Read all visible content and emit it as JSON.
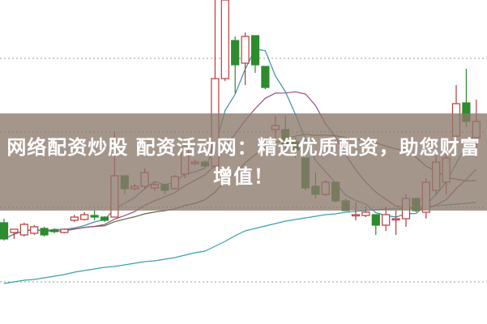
{
  "title": "网络配资炒股 配资活动网：精选优质配资，助您财富增值！",
  "chart_data": {
    "type": "candlestick",
    "grid": true,
    "colors": {
      "up": "#b83a3a",
      "down": "#2e8b2e",
      "ma5": "#3a8fa8",
      "ma10": "#9a4a8a",
      "ma20": "#5a6a3a",
      "ma_long": "#3aa0b0",
      "grid": "#999999"
    },
    "candles": [
      [
        12.5,
        10.5,
        13.0,
        10.3
      ],
      [
        11.3,
        11.7,
        11.7,
        10.5
      ],
      [
        11.0,
        12.3,
        12.5,
        10.8
      ],
      [
        11.2,
        12.0,
        12.2,
        11.0
      ],
      [
        11.8,
        11.0,
        12.0,
        10.8
      ],
      [
        11.6,
        11.4,
        11.8,
        11.2
      ],
      [
        11.3,
        11.7,
        11.8,
        11.2
      ],
      [
        12.8,
        13.2,
        13.5,
        12.6
      ],
      [
        12.9,
        13.5,
        13.8,
        12.8
      ],
      [
        13.4,
        13.2,
        14.0,
        12.8
      ],
      [
        13.2,
        12.8,
        13.3,
        12.6
      ],
      [
        13.2,
        18.3,
        23.7,
        13.2
      ],
      [
        18.3,
        16.7,
        18.3,
        16.0
      ],
      [
        16.7,
        17.0,
        17.3,
        16.5
      ],
      [
        17.0,
        18.7,
        19.2,
        16.6
      ],
      [
        16.8,
        17.2,
        17.6,
        16.4
      ],
      [
        17.2,
        16.5,
        17.2,
        16.0
      ],
      [
        16.7,
        18.2,
        18.4,
        16.6
      ],
      [
        18.5,
        22.0,
        22.0,
        18.0
      ],
      [
        19.8,
        20.0,
        20.3,
        19.6
      ],
      [
        20.0,
        19.5,
        20.2,
        19.3
      ],
      [
        19.5,
        30.3,
        40.0,
        19.3
      ],
      [
        30.3,
        40.0,
        40.0,
        30.0
      ],
      [
        35.0,
        32.0,
        35.5,
        28.5
      ],
      [
        32.2,
        35.5,
        36.0,
        29.5
      ],
      [
        35.6,
        32.0,
        35.6,
        31.0
      ],
      [
        31.8,
        29.2,
        31.8,
        29.0
      ],
      [
        24.0,
        24.5,
        25.7,
        22.5
      ],
      [
        24.0,
        22.2,
        25.7,
        21.0
      ],
      [
        22.5,
        21.5,
        23.0,
        20.5
      ],
      [
        20.5,
        16.8,
        20.5,
        16.5
      ],
      [
        17.0,
        16.0,
        18.7,
        15.5
      ],
      [
        16.0,
        17.5,
        17.8,
        15.8
      ],
      [
        17.5,
        15.2,
        17.5,
        15.0
      ],
      [
        15.2,
        14.0,
        15.5,
        14.0
      ],
      [
        13.5,
        13.5,
        15.0,
        12.8
      ],
      [
        13.4,
        13.8,
        14.5,
        13.2
      ],
      [
        13.5,
        12.2,
        13.5,
        11.0
      ],
      [
        12.2,
        13.5,
        14.5,
        11.5
      ],
      [
        13.0,
        13.0,
        14.0,
        11.0
      ],
      [
        13.0,
        15.5,
        16.0,
        12.0
      ],
      [
        15.5,
        14.0,
        15.5,
        13.8
      ],
      [
        13.8,
        17.5,
        18.0,
        13.0
      ],
      [
        16.5,
        20.0,
        21.0,
        16.0
      ],
      [
        17.5,
        20.5,
        22.0,
        16.0
      ],
      [
        23.2,
        27.2,
        29.5,
        23.0
      ],
      [
        27.3,
        25.0,
        31.5,
        24.3
      ],
      [
        23.0,
        25.0,
        27.7,
        20.5
      ]
    ],
    "candle_fields": [
      "open",
      "close",
      "high",
      "low"
    ],
    "ma_long": [
      5.0,
      5.2,
      5.4,
      5.5,
      5.7,
      5.9,
      6.1,
      6.4,
      6.6,
      6.8,
      7.0,
      7.1,
      7.3,
      7.5,
      7.7,
      7.8,
      8.0,
      8.2,
      8.5,
      8.8,
      9.0,
      9.6,
      10.2,
      10.9,
      11.5,
      11.8,
      12.1,
      12.4,
      12.7,
      12.9,
      13.1,
      13.3,
      13.5,
      13.6,
      13.8,
      13.9,
      14.0,
      14.1,
      14.2,
      14.2,
      14.3,
      14.4,
      14.5,
      14.6,
      14.7,
      14.8,
      14.9,
      15.0
    ],
    "gridlines": [
      5.2,
      14.4,
      23.7,
      32.8
    ],
    "yrange": [
      0,
      40
    ]
  }
}
